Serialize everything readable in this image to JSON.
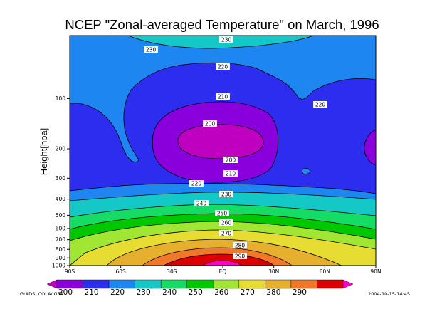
{
  "chart_data": {
    "type": "contour",
    "title": "NCEP \"Zonal-averaged Temperature\" on March, 1996",
    "xlabel": "",
    "ylabel": "Height[hpa]",
    "x_ticks": [
      "90S",
      "60S",
      "30S",
      "EQ",
      "30N",
      "60N",
      "90N"
    ],
    "y_ticks": [
      "1000",
      "900",
      "800",
      "700",
      "600",
      "500",
      "400",
      "300",
      "200",
      "100"
    ],
    "colorbar": {
      "labels": [
        "200",
        "210",
        "220",
        "230",
        "240",
        "250",
        "260",
        "270",
        "280",
        "290"
      ],
      "colors": [
        "#c000c0",
        "#8a00dc",
        "#2d2df0",
        "#1e86f0",
        "#14c8c8",
        "#14dc64",
        "#00c800",
        "#a0e632",
        "#e6dc32",
        "#e6af2d",
        "#f07828",
        "#dc0000",
        "#ff00c8"
      ]
    },
    "contour_labels": [
      {
        "text": "230"
      },
      {
        "text": "230"
      },
      {
        "text": "220"
      },
      {
        "text": "210"
      },
      {
        "text": "220"
      },
      {
        "text": "200"
      },
      {
        "text": "200"
      },
      {
        "text": "210"
      },
      {
        "text": "220"
      },
      {
        "text": "230"
      },
      {
        "text": "240"
      },
      {
        "text": "250"
      },
      {
        "text": "260"
      },
      {
        "text": "270"
      },
      {
        "text": "280"
      },
      {
        "text": "290"
      }
    ],
    "footer_left": "GrADS: COLA/IGES",
    "footer_right": "2004-10-15-14:45"
  }
}
